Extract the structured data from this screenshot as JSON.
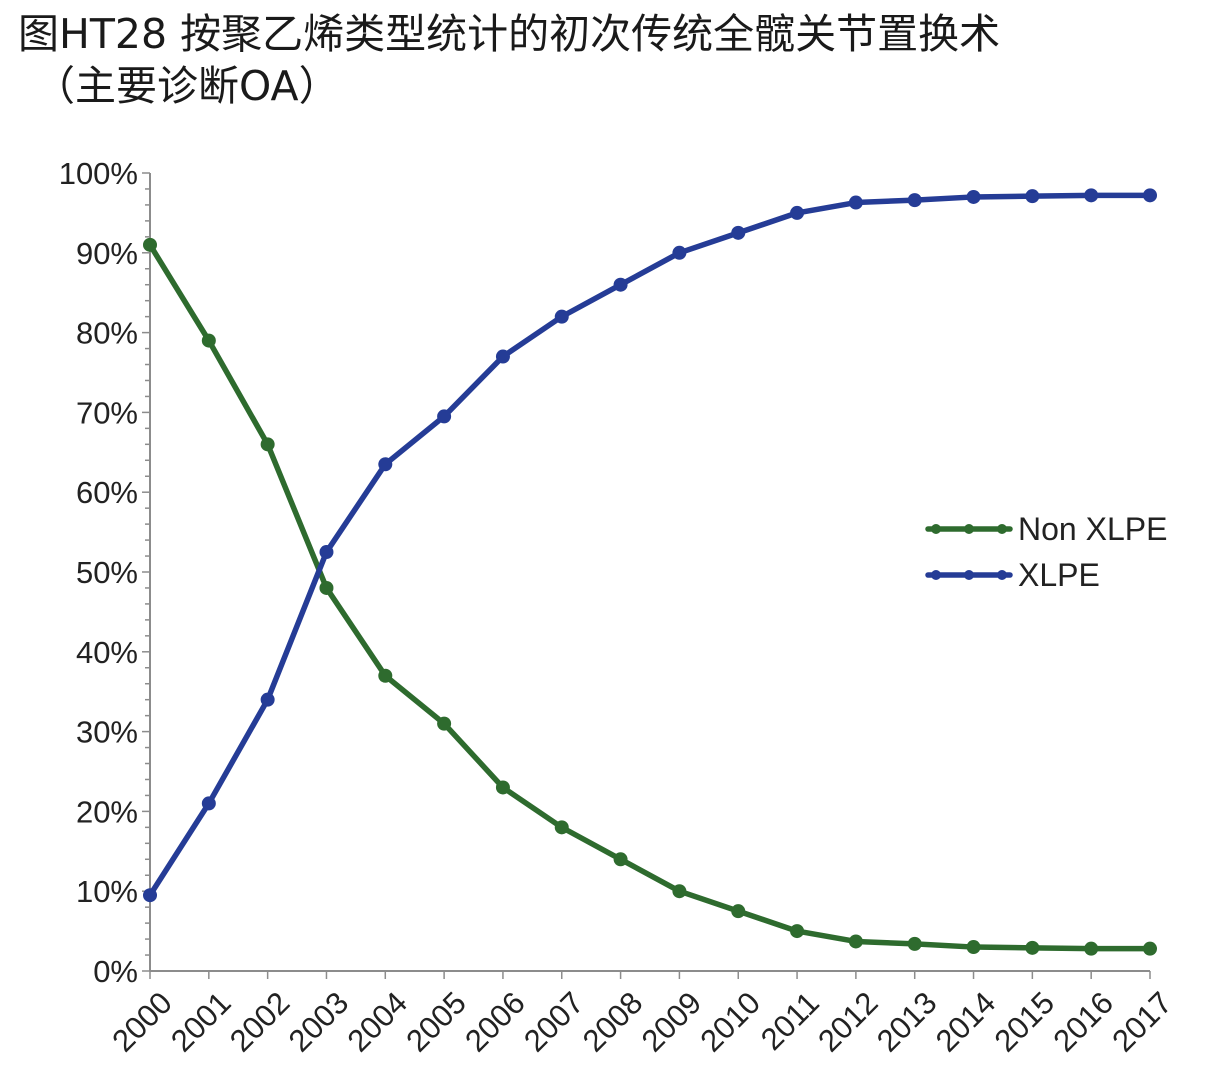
{
  "title_line1": "图HT28 按聚乙烯类型统计的初次传统全髋关节置换术",
  "title_line2": "（主要诊断OA）",
  "chart_data": {
    "type": "line",
    "x": [
      "2000",
      "2001",
      "2002",
      "2003",
      "2004",
      "2005",
      "2006",
      "2007",
      "2008",
      "2009",
      "2010",
      "2011",
      "2012",
      "2013",
      "2014",
      "2015",
      "2016",
      "2017"
    ],
    "y_ticks": [
      "0%",
      "10%",
      "20%",
      "30%",
      "40%",
      "50%",
      "60%",
      "70%",
      "80%",
      "90%",
      "100%"
    ],
    "ylim": [
      0,
      100
    ],
    "grid": false,
    "legend_position": "right",
    "series": [
      {
        "name": "Non XLPE",
        "color": "#2e6b2e",
        "values": [
          91,
          79,
          66,
          48,
          37,
          31,
          23,
          18,
          14,
          10,
          7.5,
          5,
          3.7,
          3.4,
          3,
          2.9,
          2.8,
          2.8
        ]
      },
      {
        "name": "XLPE",
        "color": "#253c96",
        "values": [
          9.5,
          21,
          34,
          52.5,
          63.5,
          69.5,
          77,
          82,
          86,
          90,
          92.5,
          95,
          96.3,
          96.6,
          97,
          97.1,
          97.2,
          97.2
        ]
      }
    ]
  }
}
